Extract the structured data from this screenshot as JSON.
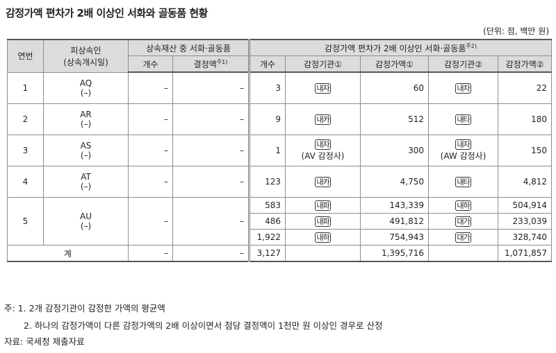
{
  "title": "감정가액 편차가 2배 이상인 서화와 골동품 현황",
  "unit": "(단위: 점, 백만 원)",
  "headers": {
    "no": "연번",
    "decedent_line1": "피상속인",
    "decedent_line2": "(상속개시일)",
    "group1": "상속재산 중 서화·골동품",
    "group2": "감정가액 편차가 2배 이상인 서화·골동품",
    "group2_sup": "주2)",
    "count": "개수",
    "decided": "결정액",
    "decided_sup": "주1)",
    "count2": "개수",
    "agency1": "감정기관①",
    "value1": "감정가액①",
    "agency2": "감정기관②",
    "value2": "감정가액②"
  },
  "rows": [
    {
      "no": "1",
      "name": "AQ",
      "date": "(–)",
      "cnt": "–",
      "dec": "–",
      "cnt2": "3",
      "ag1": "내자",
      "ag1sub": "",
      "v1": "60",
      "ag2": "내차",
      "ag2sub": "",
      "v2": "22"
    },
    {
      "no": "2",
      "name": "AR",
      "date": "(–)",
      "cnt": "–",
      "dec": "–",
      "cnt2": "9",
      "ag1": "내카",
      "ag1sub": "",
      "v1": "512",
      "ag2": "내타",
      "ag2sub": "",
      "v2": "180"
    },
    {
      "no": "3",
      "name": "AS",
      "date": "(–)",
      "cnt": "–",
      "dec": "–",
      "cnt2": "1",
      "ag1": "내자",
      "ag1sub": "(AV 감정사)",
      "v1": "300",
      "ag2": "내자",
      "ag2sub": "(AW 감정사)",
      "v2": "150"
    },
    {
      "no": "4",
      "name": "AT",
      "date": "(–)",
      "cnt": "–",
      "dec": "–",
      "cnt2": "123",
      "ag1": "내카",
      "ag1sub": "",
      "v1": "4,750",
      "ag2": "내타",
      "ag2sub": "",
      "v2": "4,812"
    }
  ],
  "row5": {
    "no": "5",
    "name": "AU",
    "date": "(–)",
    "cnt": "–",
    "dec": "–",
    "sub": [
      {
        "cnt2": "583",
        "ag1": "내파",
        "v1": "143,339",
        "ag2": "내하",
        "v2": "504,914"
      },
      {
        "cnt2": "486",
        "ag1": "내파",
        "v1": "491,812",
        "ag2": "대가",
        "v2": "233,039"
      },
      {
        "cnt2": "1,922",
        "ag1": "내하",
        "v1": "754,943",
        "ag2": "대가",
        "v2": "328,740"
      }
    ]
  },
  "total": {
    "label": "계",
    "cnt": "–",
    "dec": "–",
    "cnt2": "3,127",
    "v1": "1,395,716",
    "v2": "1,071,857"
  },
  "notes": {
    "n1": "주: 1. 2개 감정기관이 감정한 가액의 평균액",
    "n2": "2. 하나의 감정가액이 다른 감정가액의 2배 이상이면서 점당 결정액이 1천만 원 이상인 경우로 산정",
    "source": "자료: 국세청 제출자료"
  }
}
